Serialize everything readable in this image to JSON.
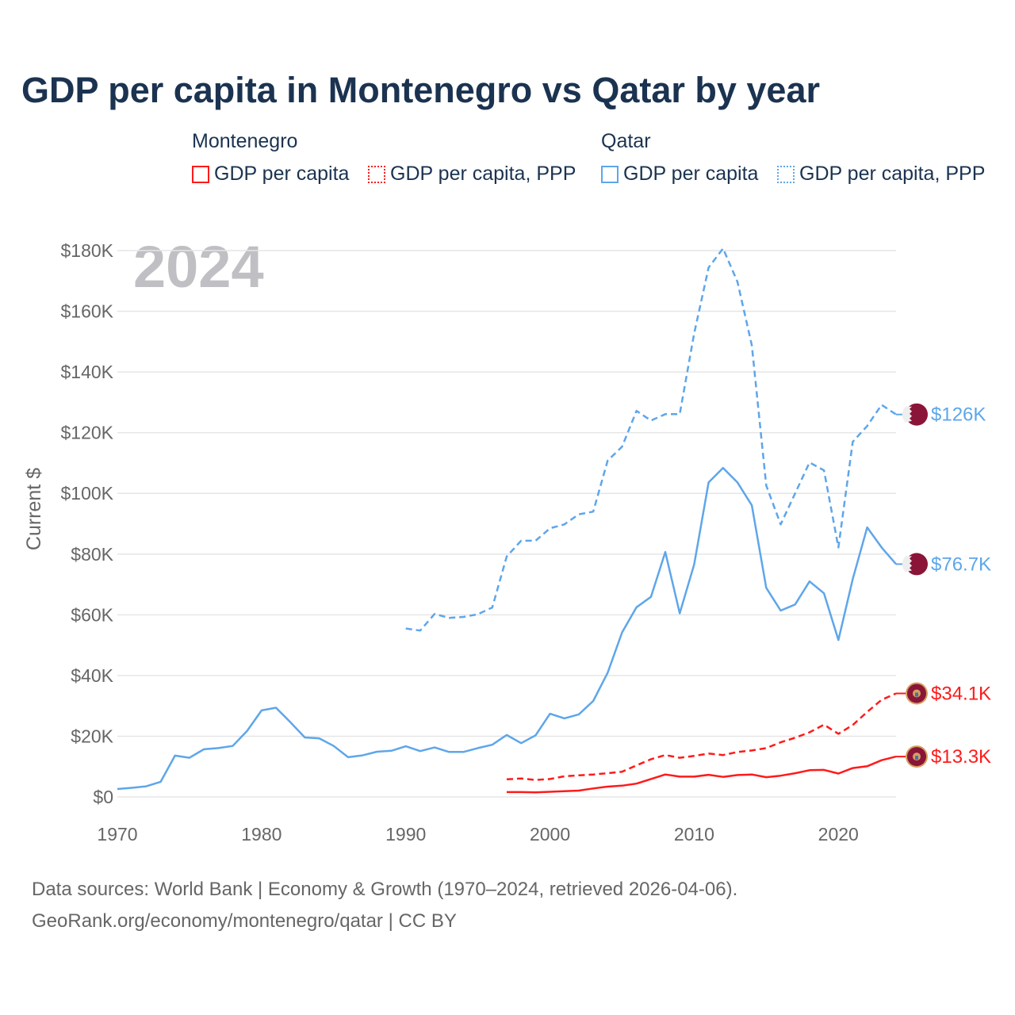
{
  "title": "GDP per capita in Montenegro vs Qatar by year",
  "legend": {
    "groups": [
      {
        "name": "Montenegro",
        "items": [
          "GDP per capita",
          "GDP per capita, PPP"
        ]
      },
      {
        "name": "Qatar",
        "items": [
          "GDP per capita",
          "GDP per capita, PPP"
        ]
      }
    ]
  },
  "year_watermark": "2024",
  "footer": {
    "line1": "Data sources: World Bank | Economy & Growth (1970–2024, retrieved 2026-04-06).",
    "line2": "GeoRank.org/economy/montenegro/qatar | CC BY"
  },
  "colors": {
    "montenegro": "#ff1a1a",
    "qatar": "#5ea6ea",
    "qatar_flag": "#8a1538",
    "montenegro_flag": "#c40308"
  },
  "chart_data": {
    "type": "line",
    "title": "GDP per capita in Montenegro vs Qatar by year",
    "xlabel": "",
    "ylabel": "Current $",
    "xlim": [
      1970,
      2024
    ],
    "ylim": [
      0,
      180000
    ],
    "x_ticks": [
      1970,
      1980,
      1990,
      2000,
      2010,
      2020
    ],
    "x_tick_labels": [
      "1970",
      "1980",
      "1990",
      "2000",
      "2010",
      "2020"
    ],
    "y_ticks": [
      0,
      20000,
      40000,
      60000,
      80000,
      100000,
      120000,
      140000,
      160000,
      180000
    ],
    "y_tick_labels": [
      "$0",
      "$20K",
      "$40K",
      "$60K",
      "$80K",
      "$100K",
      "$120K",
      "$140K",
      "$160K",
      "$180K"
    ],
    "grid": true,
    "legend_position": "top",
    "series": [
      {
        "name": "Qatar GDP per capita, PPP",
        "country": "qatar",
        "dash": true,
        "start": 1990,
        "end_label": "$126K",
        "values": [
          55.5,
          54.8,
          60.3,
          59.0,
          59.3,
          60.2,
          62.4,
          79.2,
          84.4,
          84.4,
          88.5,
          89.8,
          93.1,
          94.0,
          110.8,
          115.4,
          127.2,
          124.0,
          126.1,
          126.1,
          152.7,
          174.4,
          180.7,
          169.7,
          148.8,
          102.6,
          89.8,
          100.0,
          110.2,
          107.6,
          82.2,
          117.0,
          122.2,
          129.2,
          126.0
        ]
      },
      {
        "name": "Qatar GDP per capita",
        "country": "qatar",
        "dash": false,
        "start": 1970,
        "end_label": "$76.7K",
        "values": [
          2.6,
          3.0,
          3.5,
          5.0,
          13.6,
          12.9,
          15.7,
          16.1,
          16.8,
          21.8,
          28.5,
          29.4,
          24.6,
          19.6,
          19.3,
          16.8,
          13.1,
          13.7,
          14.9,
          15.2,
          16.7,
          15.1,
          16.3,
          14.8,
          14.8,
          16.1,
          17.2,
          20.4,
          17.7,
          20.3,
          27.4,
          25.9,
          27.2,
          31.6,
          40.9,
          54.2,
          62.5,
          65.9,
          80.7,
          60.5,
          76.6,
          103.6,
          108.4,
          103.6,
          96.1,
          68.9,
          61.4,
          63.4,
          71.0,
          67.1,
          51.7,
          71.8,
          88.8,
          82.2,
          76.7
        ]
      },
      {
        "name": "Montenegro GDP per capita, PPP",
        "country": "montenegro",
        "dash": true,
        "start": 1997,
        "end_label": "$34.1K",
        "values": [
          5.8,
          6.1,
          5.6,
          5.9,
          6.8,
          7.1,
          7.4,
          7.8,
          8.3,
          10.4,
          12.4,
          13.8,
          12.9,
          13.5,
          14.3,
          13.8,
          14.8,
          15.3,
          16.1,
          18.0,
          19.5,
          21.3,
          23.8,
          20.8,
          23.7,
          28.0,
          32.0,
          34.1
        ]
      },
      {
        "name": "Montenegro GDP per capita",
        "country": "montenegro",
        "dash": false,
        "start": 1997,
        "end_label": "$13.3K",
        "values": [
          1.6,
          1.6,
          1.5,
          1.7,
          1.9,
          2.1,
          2.8,
          3.4,
          3.7,
          4.4,
          5.9,
          7.4,
          6.7,
          6.7,
          7.3,
          6.6,
          7.2,
          7.4,
          6.5,
          7.0,
          7.8,
          8.8,
          8.9,
          7.7,
          9.5,
          10.1,
          12.1,
          13.3
        ]
      }
    ],
    "value_unit": "thousands of current US$"
  }
}
